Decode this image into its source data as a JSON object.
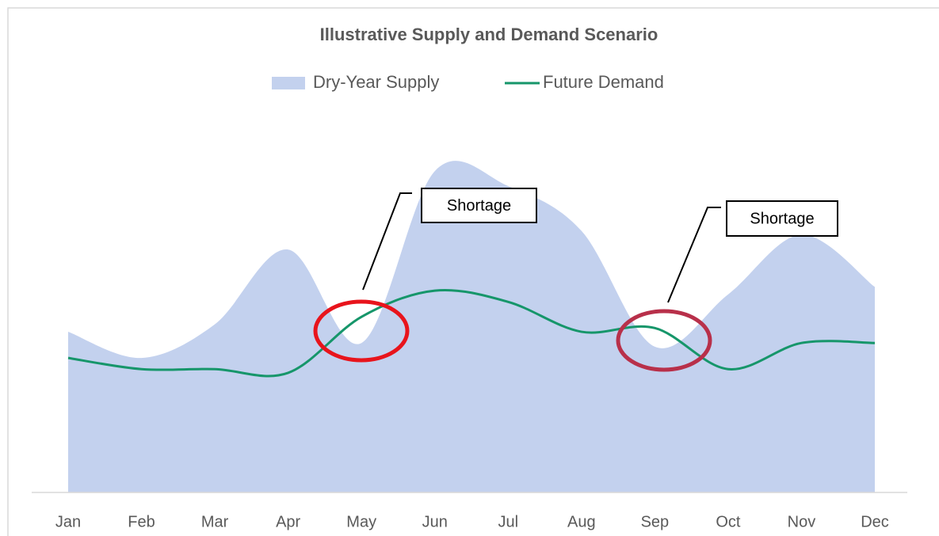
{
  "chart_data": {
    "type": "area_line",
    "title": "Illustrative Supply and Demand Scenario",
    "categories": [
      "Jan",
      "Feb",
      "Mar",
      "Apr",
      "May",
      "Jun",
      "Jul",
      "Aug",
      "Sep",
      "Oct",
      "Nov",
      "Dec"
    ],
    "series": [
      {
        "name": "Dry-Year Supply",
        "type": "area",
        "color": "#c3d1ee",
        "values": [
          43,
          36,
          45,
          65,
          40,
          86,
          82,
          70,
          39,
          53,
          69,
          55
        ]
      },
      {
        "name": "Future Demand",
        "type": "line",
        "color": "#16966a",
        "values": [
          36,
          33,
          33,
          32,
          47,
          54,
          51,
          43,
          44,
          33,
          40,
          40
        ]
      }
    ],
    "ylim": [
      0,
      100
    ],
    "legend": "top",
    "annotations": [
      {
        "text": "Shortage"
      },
      {
        "text": "Shortage"
      }
    ]
  }
}
